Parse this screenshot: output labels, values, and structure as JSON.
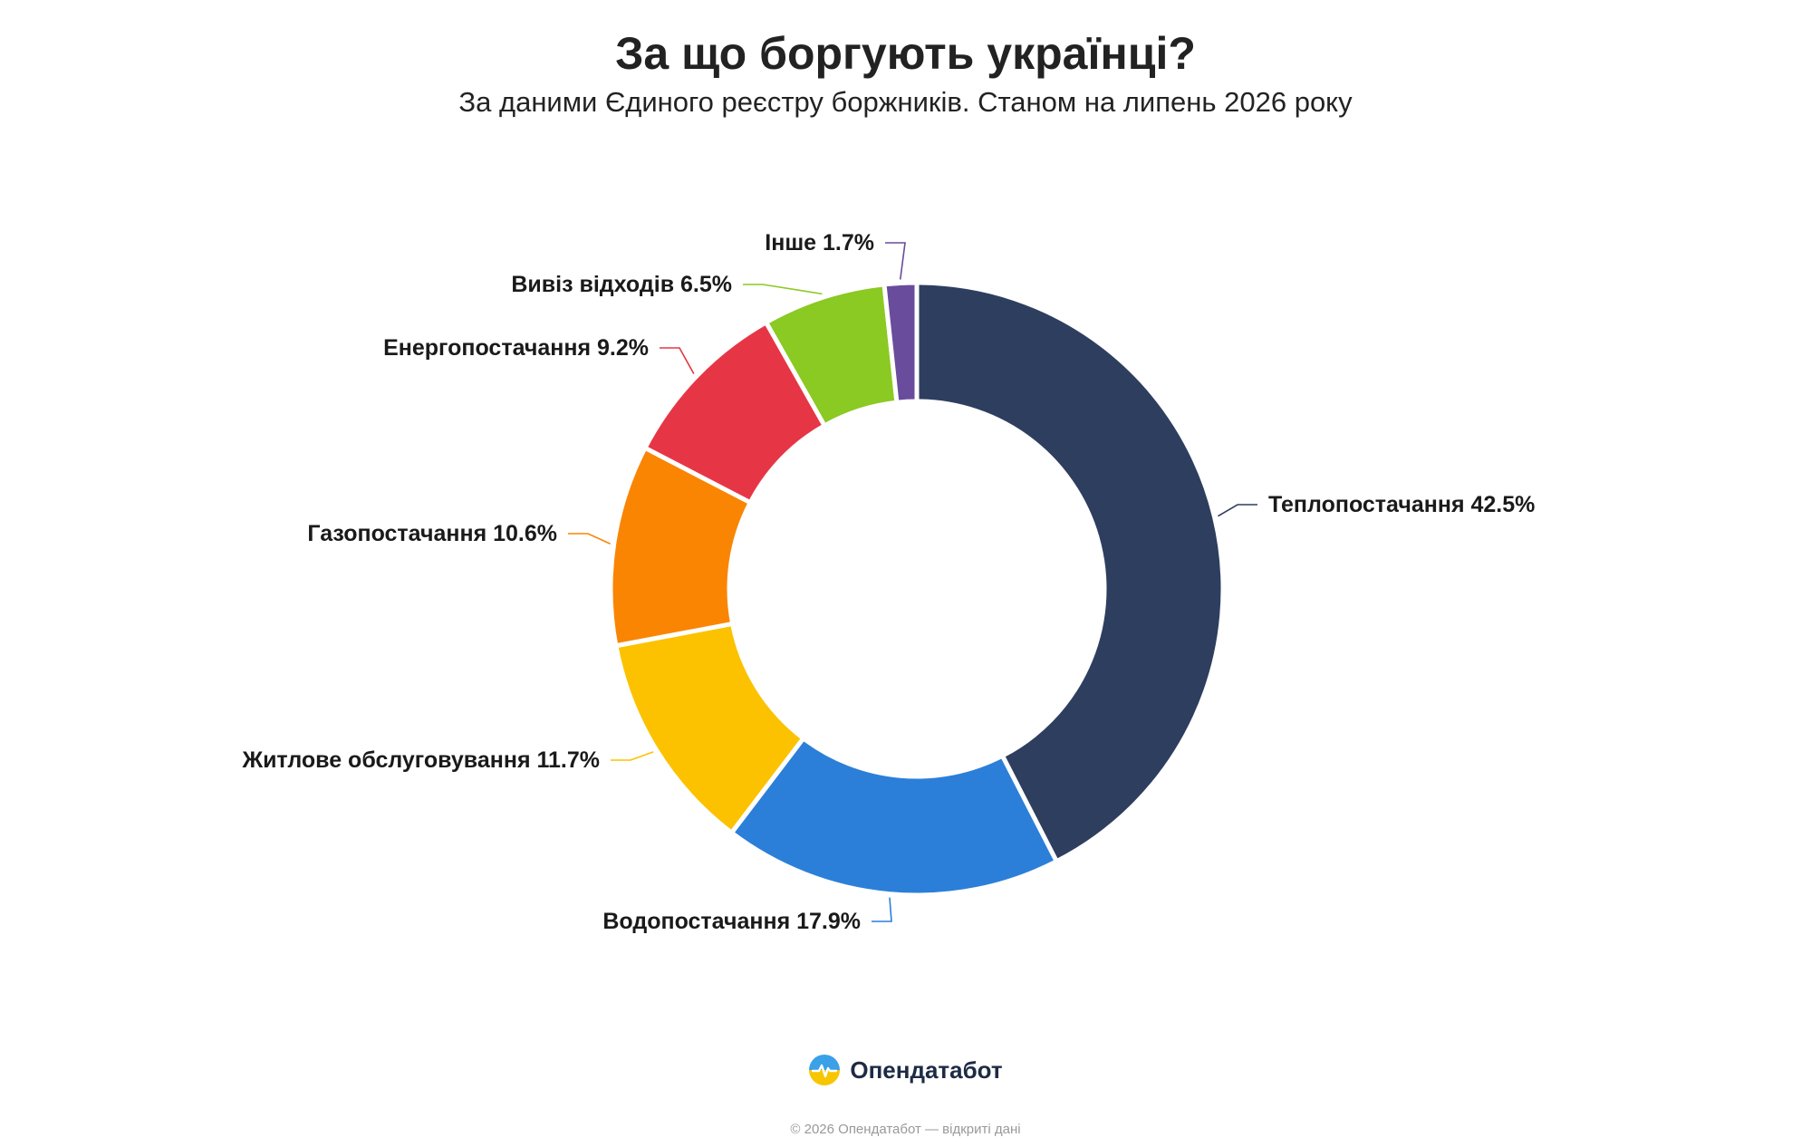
{
  "chart_data": {
    "type": "pie",
    "donut": true,
    "title": "За що боргують українці?",
    "subtitle": "За даними Єдиного реєстру боржників. Станом на липень 2026 року",
    "slices": [
      {
        "label": "Теплопостачання",
        "value": 42.5,
        "display": "Теплопостачання 42.5%",
        "color": "#2e3e5f"
      },
      {
        "label": "Водопостачання",
        "value": 17.9,
        "display": "Водопостачання 17.9%",
        "color": "#2b7fd9"
      },
      {
        "label": "Житлове обслуговування",
        "value": 11.7,
        "display": "Житлове обслуговування 11.7%",
        "color": "#fcc200"
      },
      {
        "label": "Газопостачання",
        "value": 10.6,
        "display": "Газопостачання 10.6%",
        "color": "#fa8503"
      },
      {
        "label": "Енергопостачання",
        "value": 9.2,
        "display": "Енергопостачання 9.2%",
        "color": "#e63645"
      },
      {
        "label": "Вивіз відходів",
        "value": 6.5,
        "display": "Вивіз відходів 6.5%",
        "color": "#8bc923"
      },
      {
        "label": "Інше",
        "value": 1.7,
        "display": "Інше 1.7%",
        "color": "#6a4c9c"
      }
    ]
  },
  "brand": {
    "name": "Опендатабот",
    "logo_icon": "opendatabot-logo-icon"
  },
  "footer": {
    "note": "© 2026 Опендатабот — відкриті дані"
  }
}
